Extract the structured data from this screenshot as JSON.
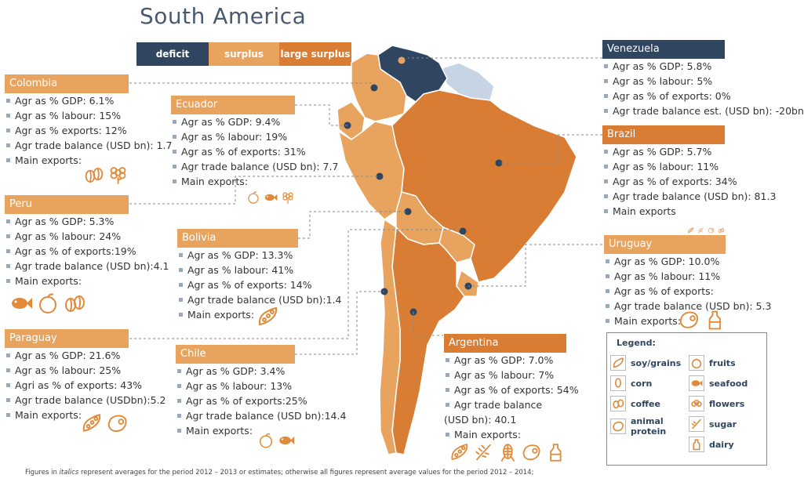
{
  "title": "South America",
  "legend_bar": {
    "deficit": "deficit",
    "surplus": "surplus",
    "large_surplus": "large surplus"
  },
  "colors": {
    "deficit": "#2f4560",
    "surplus": "#e8a45f",
    "large_surplus": "#d97c34",
    "accent": "#e08a3a"
  },
  "countries": {
    "colombia": {
      "name": "Colombia",
      "lines": [
        "Agr as % GDP: 6.1%",
        "Agr as % labour: 15%",
        "Agr as % exports: 12%",
        "Agr trade balance (USD bn): 1.7",
        "Main exports:"
      ]
    },
    "ecuador": {
      "name": "Ecuador",
      "lines": [
        "Agr as % GDP: 9.4%",
        "Agr as % labour: 19%",
        "Agr as % of exports: 31%",
        "Agr trade balance (USD bn): 7.7",
        "Main exports:"
      ]
    },
    "peru": {
      "name": "Peru",
      "lines": [
        "Agr as % GDP: 5.3%",
        "Agr as % labour: 24%",
        "Agr as % of exports:19%",
        "Agr trade balance (USD bn):4.1",
        "Main exports:"
      ]
    },
    "bolivia": {
      "name": "Bolivia",
      "lines": [
        "Agr as % GDP: 13.3%",
        "Agr as % labour: 41%",
        "Agr as % of exports: 14%",
        "Agr trade balance (USD bn):1.4",
        "Main exports:"
      ]
    },
    "paraguay": {
      "name": "Paraguay",
      "lines": [
        "Agr as % GDP: 21.6%",
        "Agr as % labour: 25%",
        "Agri as % of exports: 43%",
        "Agr trade balance (USDbn):5.2",
        "Main exports:"
      ]
    },
    "chile": {
      "name": "Chile",
      "lines": [
        "Agr as % GDP: 3.4%",
        "Agr as % labour: 13%",
        "Agr as % of exports:25%",
        "Agr trade balance (USD bn):14.4",
        "Main exports:"
      ]
    },
    "venezuela": {
      "name": "Venezuela",
      "lines": [
        "Agr as % GDP: 5.8%",
        "Agr as % labour: 5%",
        "Agr as % of exports: 0%",
        "Agr trade balance est. (USD bn): -20bn"
      ]
    },
    "brazil": {
      "name": "Brazil",
      "lines": [
        "Agr as % GDP: 5.7%",
        "Agr as % labour: 11%",
        "Agr as % of exports: 34%",
        "Agr trade balance (USD bn): 81.3",
        "Main exports"
      ]
    },
    "uruguay": {
      "name": "Uruguay",
      "lines": [
        "Agr as % GDP: 10.0%",
        "Agr as % labour: 11%",
        "Agr as % of exports:",
        "Agr trade balance (USD bn): 5.3",
        "Main exports:"
      ]
    },
    "argentina": {
      "name": "Argentina",
      "lines": [
        "Agr as % GDP: 7.0%",
        "Agr as % labour: 7%",
        "Agr as % of exports: 54%",
        "Agr trade balance",
        "(USD bn): 40.1",
        "Main exports:"
      ]
    }
  },
  "legend": {
    "title": "Legend:",
    "items": {
      "soy": "soy/grains",
      "corn": "corn",
      "coffee": "coffee",
      "animal": "animal protein",
      "fruits": "fruits",
      "seafood": "seafood",
      "flowers": "flowers",
      "sugar": "sugar",
      "dairy": "dairy"
    }
  },
  "footnote": {
    "pre": "Figures in ",
    "italic": "italics",
    "post": " represent averages for the period 2012 – 2013 or estimates; otherwise all figures represent average values for the period 2012 – 2014;"
  }
}
